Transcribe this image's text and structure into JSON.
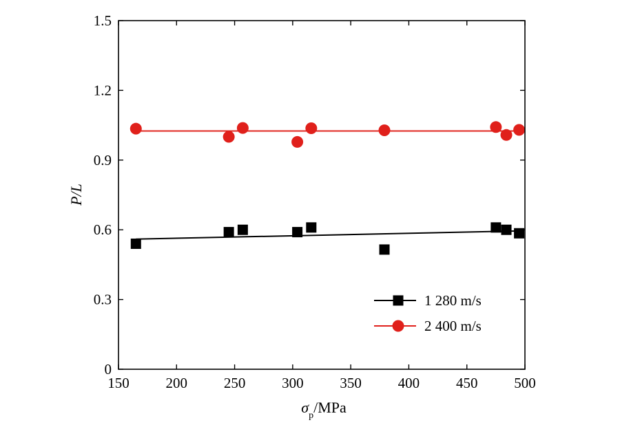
{
  "chart_data": {
    "type": "scatter",
    "xlabel": "σ",
    "xlabel_subscript": "p",
    "xlabel_unit": "/MPa",
    "ylabel": "P/L",
    "xlim": [
      150,
      500
    ],
    "ylim": [
      0,
      1.5
    ],
    "x_ticks": [
      150,
      200,
      250,
      300,
      350,
      400,
      450,
      500
    ],
    "x_tick_labels": [
      "150",
      "200",
      "250",
      "300",
      "350",
      "400",
      "450",
      "500"
    ],
    "y_ticks": [
      0,
      0.3,
      0.6,
      0.9,
      1.2,
      1.5
    ],
    "y_tick_labels": [
      "0",
      "0.3",
      "0.6",
      "0.9",
      "1.2",
      "1.5"
    ],
    "grid": false,
    "legend_position": "bottom-right",
    "series": [
      {
        "name": "1 280 m/s",
        "marker": "square",
        "color": "#000000",
        "points": [
          {
            "x": 165,
            "y": 0.54
          },
          {
            "x": 245,
            "y": 0.59
          },
          {
            "x": 257,
            "y": 0.6
          },
          {
            "x": 304,
            "y": 0.59
          },
          {
            "x": 316,
            "y": 0.61
          },
          {
            "x": 379,
            "y": 0.515
          },
          {
            "x": 475,
            "y": 0.61
          },
          {
            "x": 484,
            "y": 0.6
          },
          {
            "x": 495,
            "y": 0.585
          }
        ],
        "fit_line": {
          "x": [
            165,
            495
          ],
          "y": [
            0.56,
            0.595
          ]
        }
      },
      {
        "name": "2 400 m/s",
        "marker": "circle",
        "color": "#e0201b",
        "points": [
          {
            "x": 165,
            "y": 1.035
          },
          {
            "x": 245,
            "y": 1.0
          },
          {
            "x": 257,
            "y": 1.038
          },
          {
            "x": 304,
            "y": 0.978
          },
          {
            "x": 316,
            "y": 1.037
          },
          {
            "x": 379,
            "y": 1.028
          },
          {
            "x": 475,
            "y": 1.042
          },
          {
            "x": 484,
            "y": 1.008
          },
          {
            "x": 495,
            "y": 1.03
          }
        ],
        "fit_line": {
          "x": [
            165,
            495
          ],
          "y": [
            1.025,
            1.025
          ]
        }
      }
    ]
  }
}
